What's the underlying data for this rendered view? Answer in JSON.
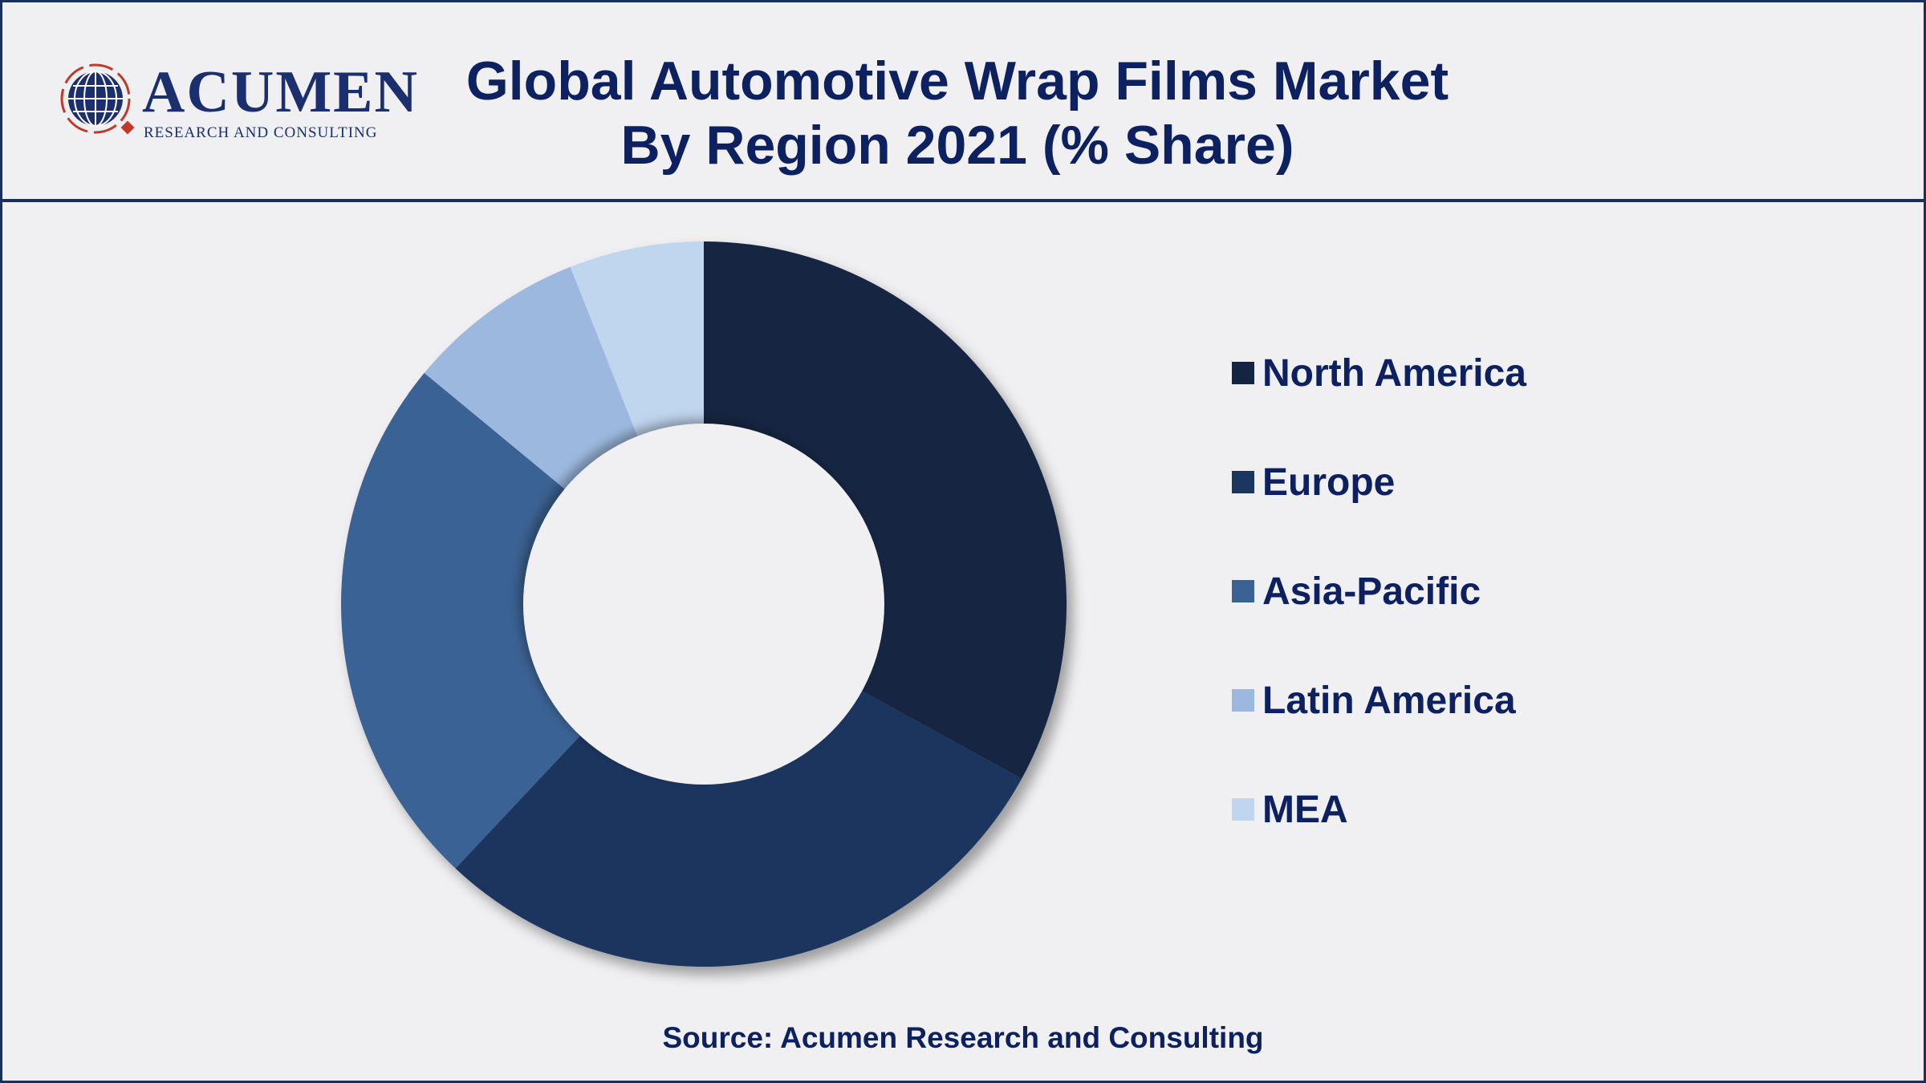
{
  "logo": {
    "name": "ACUMEN",
    "tagline": "RESEARCH AND CONSULTING"
  },
  "title_lines": [
    "Global Automotive Wrap Films Market",
    "By Region 2021 (% Share)"
  ],
  "source": "Source: Acumen Research and Consulting",
  "chart_data": {
    "type": "pie",
    "subtype": "donut",
    "title": "Global Automotive Wrap Films Market By Region 2021 (% Share)",
    "categories": [
      "North America",
      "Europe",
      "Asia-Pacific",
      "Latin America",
      "MEA"
    ],
    "values": [
      33,
      29,
      24,
      8,
      6
    ],
    "colors": [
      "#132542",
      "#1b365f",
      "#3a6294",
      "#9cb8de",
      "#c0d5ee"
    ],
    "legend_position": "right"
  }
}
